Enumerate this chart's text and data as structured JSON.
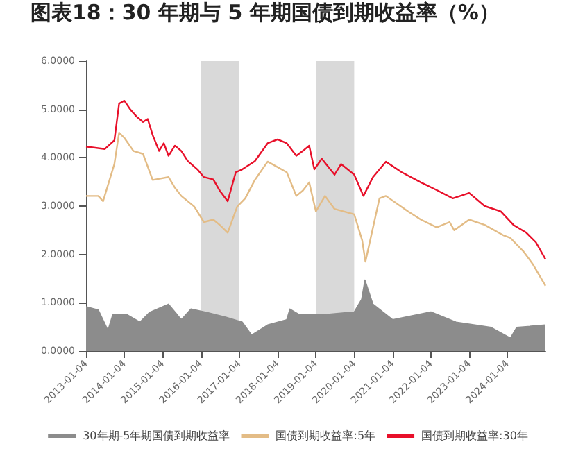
{
  "chart_data": {
    "type": "line",
    "title": "图表18：30 年期与 5 年期国债到期收益率（%）",
    "xlim": [
      "2013-01-04",
      "2024-12-31"
    ],
    "xticks": [
      "2013-01-04",
      "2014-01-04",
      "2015-01-04",
      "2016-01-04",
      "2017-01-04",
      "2018-01-04",
      "2019-01-04",
      "2020-01-04",
      "2021-01-04",
      "2022-01-04",
      "2023-01-04",
      "2024-01-04"
    ],
    "ylim": [
      0,
      6
    ],
    "yticks": [
      {
        "value": 0,
        "label": "0.0000"
      },
      {
        "value": 1,
        "label": "1.0000"
      },
      {
        "value": 2,
        "label": "2.0000"
      },
      {
        "value": 3,
        "label": "3.0000"
      },
      {
        "value": 4,
        "label": "4.0000"
      },
      {
        "value": 5,
        "label": "5.0000"
      },
      {
        "value": 6,
        "label": "6.0000"
      }
    ],
    "grid": false,
    "legend": "bottom",
    "marker": "none",
    "bands": [
      {
        "axis": "x",
        "from": "2016-01-04",
        "to": "2017-01-04",
        "color": "#d9d9d9"
      },
      {
        "axis": "x",
        "from": "2019-01-04",
        "to": "2020-01-04",
        "color": "#d9d9d9"
      }
    ],
    "series": [
      {
        "name": "30年期-5年期国债到期收益率",
        "type": "area",
        "color": "#8c8c8c",
        "x": [
          "2013-01-04",
          "2013-05-01",
          "2013-08-01",
          "2013-09-15",
          "2014-02-01",
          "2014-06-01",
          "2014-09-01",
          "2015-03-01",
          "2015-07-01",
          "2015-10-01",
          "2016-03-01",
          "2016-09-01",
          "2017-02-01",
          "2017-05-01",
          "2017-10-01",
          "2018-04-01",
          "2018-05-01",
          "2018-08-01",
          "2019-03-01",
          "2020-01-04",
          "2020-03-15",
          "2020-04-15",
          "2020-07-01",
          "2021-01-04",
          "2022-01-04",
          "2022-09-01",
          "2023-08-01",
          "2024-02-01",
          "2024-04-01",
          "2024-12-31"
        ],
        "values": [
          0.92,
          0.85,
          0.43,
          0.75,
          0.75,
          0.6,
          0.8,
          0.97,
          0.65,
          0.87,
          0.8,
          0.7,
          0.6,
          0.33,
          0.54,
          0.65,
          0.87,
          0.75,
          0.75,
          0.81,
          1.07,
          1.47,
          0.97,
          0.65,
          0.81,
          0.6,
          0.49,
          0.27,
          0.49,
          0.54
        ]
      },
      {
        "name": "国债到期收益率:5年",
        "color": "#e3bc86",
        "x": [
          "2013-01-04",
          "2013-05-01",
          "2013-06-15",
          "2013-10-01",
          "2013-11-15",
          "2014-01-04",
          "2014-04-01",
          "2014-07-01",
          "2014-10-01",
          "2015-03-01",
          "2015-05-01",
          "2015-07-01",
          "2015-11-01",
          "2016-02-01",
          "2016-05-01",
          "2016-07-01",
          "2016-09-15",
          "2016-12-15",
          "2017-03-01",
          "2017-06-01",
          "2017-10-01",
          "2018-04-01",
          "2018-07-01",
          "2018-09-01",
          "2018-11-01",
          "2019-01-04",
          "2019-04-01",
          "2019-07-01",
          "2020-01-04",
          "2020-03-20",
          "2020-04-20",
          "2020-09-01",
          "2020-11-01",
          "2021-06-01",
          "2021-10-01",
          "2022-03-01",
          "2022-07-01",
          "2022-08-15",
          "2023-01-04",
          "2023-06-01",
          "2023-12-01",
          "2024-02-01",
          "2024-06-01",
          "2024-09-01",
          "2024-12-31"
        ],
        "values": [
          3.21,
          3.21,
          3.1,
          3.87,
          4.52,
          4.41,
          4.14,
          4.08,
          3.54,
          3.6,
          3.38,
          3.21,
          2.99,
          2.67,
          2.72,
          2.61,
          2.45,
          2.99,
          3.16,
          3.54,
          3.92,
          3.7,
          3.21,
          3.32,
          3.49,
          2.89,
          3.21,
          2.94,
          2.83,
          2.29,
          1.85,
          3.16,
          3.21,
          2.89,
          2.72,
          2.56,
          2.67,
          2.5,
          2.72,
          2.61,
          2.39,
          2.34,
          2.07,
          1.8,
          1.35
        ]
      },
      {
        "name": "国债到期收益率:30年",
        "color": "#e8102a",
        "x": [
          "2013-01-04",
          "2013-07-01",
          "2013-10-01",
          "2013-11-15",
          "2014-01-04",
          "2014-03-01",
          "2014-05-01",
          "2014-07-01",
          "2014-08-15",
          "2014-10-01",
          "2014-12-01",
          "2015-01-15",
          "2015-03-01",
          "2015-05-01",
          "2015-07-01",
          "2015-09-01",
          "2015-12-01",
          "2016-02-01",
          "2016-05-01",
          "2016-07-01",
          "2016-09-15",
          "2016-12-01",
          "2017-02-01",
          "2017-06-01",
          "2017-10-01",
          "2018-01-04",
          "2018-04-01",
          "2018-07-01",
          "2018-09-01",
          "2018-11-01",
          "2018-12-20",
          "2019-03-01",
          "2019-07-01",
          "2019-09-01",
          "2020-01-04",
          "2020-04-01",
          "2020-07-01",
          "2020-11-01",
          "2021-04-01",
          "2021-10-01",
          "2022-03-01",
          "2022-08-01",
          "2023-01-04",
          "2023-06-01",
          "2023-11-01",
          "2024-03-01",
          "2024-07-01",
          "2024-10-01",
          "2024-12-31"
        ],
        "values": [
          4.23,
          4.18,
          4.36,
          5.12,
          5.18,
          5.0,
          4.85,
          4.74,
          4.8,
          4.47,
          4.14,
          4.3,
          4.04,
          4.25,
          4.14,
          3.93,
          3.76,
          3.6,
          3.55,
          3.32,
          3.1,
          3.7,
          3.76,
          3.93,
          4.3,
          4.38,
          4.3,
          4.04,
          4.14,
          4.25,
          3.76,
          3.98,
          3.65,
          3.87,
          3.65,
          3.21,
          3.6,
          3.92,
          3.7,
          3.49,
          3.33,
          3.16,
          3.27,
          3.0,
          2.89,
          2.61,
          2.45,
          2.25,
          1.9
        ]
      }
    ]
  }
}
